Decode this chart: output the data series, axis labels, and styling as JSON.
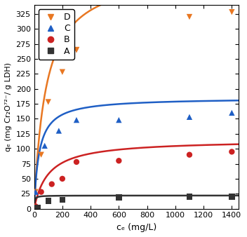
{
  "title": "",
  "xlabel": "cₑ (mg/L)",
  "ylabel": "qₑ (mg Cr₂O⁷²⁻/ g LDH)",
  "xlim": [
    0,
    1450
  ],
  "ylim": [
    0,
    340
  ],
  "xticks": [
    0,
    200,
    400,
    600,
    800,
    1000,
    1200,
    1400
  ],
  "yticks": [
    0,
    25,
    50,
    75,
    100,
    125,
    150,
    175,
    200,
    225,
    250,
    275,
    300,
    325
  ],
  "series": [
    {
      "label": "D",
      "color": "#E87722",
      "marker": "v",
      "scatter_x": [
        10,
        50,
        100,
        200,
        300,
        300,
        1100,
        1400
      ],
      "scatter_y": [
        28,
        90,
        178,
        228,
        265,
        265,
        320,
        328
      ],
      "langmuir_qmax": 400,
      "langmuir_kl": 0.012
    },
    {
      "label": "C",
      "color": "#1f5fc5",
      "marker": "^",
      "scatter_x": [
        10,
        75,
        175,
        300,
        600,
        1100,
        1400
      ],
      "scatter_y": [
        28,
        105,
        130,
        148,
        148,
        153,
        160
      ],
      "langmuir_qmax": 185,
      "langmuir_kl": 0.028
    },
    {
      "label": "B",
      "color": "#cc2222",
      "marker": "o",
      "scatter_x": [
        10,
        50,
        125,
        200,
        300,
        600,
        1100,
        1400
      ],
      "scatter_y": [
        4,
        28,
        41,
        50,
        78,
        80,
        90,
        95
      ],
      "langmuir_qmax": 115,
      "langmuir_kl": 0.01
    },
    {
      "label": "A",
      "color": "#333333",
      "marker": "s",
      "scatter_x": [
        25,
        100,
        200,
        600,
        1100,
        1400
      ],
      "scatter_y": [
        2,
        13,
        15,
        19,
        20,
        20
      ],
      "langmuir_qmax": 22,
      "langmuir_kl": 0.3
    }
  ],
  "background_color": "#ffffff",
  "markersize": 6,
  "linewidth": 1.8
}
